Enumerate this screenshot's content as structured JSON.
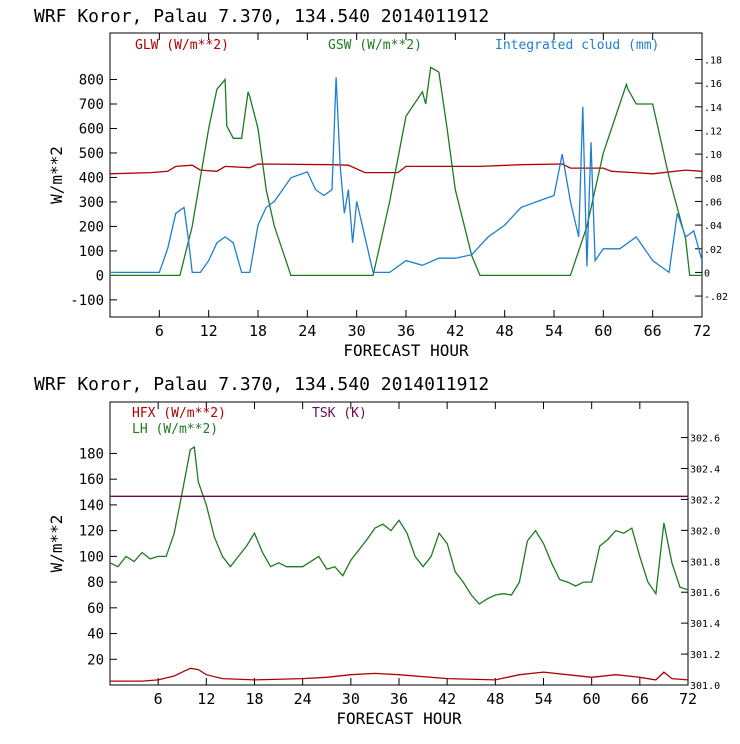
{
  "chart_data": [
    {
      "type": "line",
      "title": "WRF   Koror, Palau   7.370, 134.540  2014011912",
      "xlabel": "FORECAST HOUR",
      "ylabel": "W/m**2",
      "x_ticks": [
        6,
        12,
        18,
        24,
        30,
        36,
        42,
        48,
        54,
        60,
        66,
        72
      ],
      "y_ticks": [
        -100,
        0,
        100,
        200,
        300,
        400,
        500,
        600,
        700,
        800
      ],
      "y2_ticks": [
        -0.02,
        0,
        0.02,
        0.04,
        0.06,
        0.08,
        0.1,
        0.12,
        0.14,
        0.16,
        0.18
      ],
      "y2_tick_labels": [
        "-.02",
        "0",
        ".02",
        ".04",
        ".06",
        ".08",
        ".10",
        ".12",
        ".14",
        ".16",
        ".18"
      ],
      "xlim": [
        0,
        72
      ],
      "ylim": [
        -170,
        990
      ],
      "y2lim": [
        -0.0377,
        0.2024
      ],
      "grid": false,
      "legend": "top",
      "series": [
        {
          "name": "GLW (W/m**2)",
          "color": "#b00000",
          "axis": "left",
          "x": [
            0,
            5,
            7,
            8,
            10,
            11,
            13,
            14,
            17,
            18,
            27,
            29,
            31,
            35,
            36,
            45,
            50,
            55,
            56,
            60,
            61,
            66,
            70,
            72
          ],
          "y": [
            415,
            420,
            425,
            445,
            450,
            430,
            425,
            445,
            440,
            455,
            452,
            450,
            420,
            420,
            445,
            445,
            452,
            455,
            438,
            438,
            425,
            415,
            430,
            425
          ]
        },
        {
          "name": "GSW (W/m**2)",
          "color": "#1f7a1f",
          "axis": "left",
          "x": [
            0,
            8.5,
            10,
            12,
            13,
            14,
            14.2,
            15,
            16,
            16.8,
            17,
            18,
            19,
            20,
            21,
            22,
            32,
            34,
            36,
            38,
            38.4,
            39,
            40,
            41,
            42,
            44,
            45,
            56,
            58,
            60,
            62,
            62.8,
            63,
            64,
            66,
            68,
            70,
            70.5,
            72
          ],
          "y": [
            0,
            0,
            200,
            600,
            760,
            800,
            610,
            560,
            560,
            750,
            730,
            600,
            350,
            200,
            100,
            0,
            0,
            300,
            650,
            750,
            700,
            850,
            830,
            600,
            350,
            80,
            0,
            0,
            200,
            500,
            700,
            780,
            760,
            700,
            700,
            400,
            150,
            0,
            0
          ]
        },
        {
          "name": "Integrated cloud (mm)",
          "color": "#1e7fd0",
          "axis": "right",
          "x": [
            0,
            3,
            5,
            6,
            7,
            8,
            9,
            9.5,
            10,
            11,
            12,
            13,
            14,
            15,
            16,
            17,
            18,
            19,
            20,
            21,
            22,
            24,
            25,
            26,
            27,
            27.5,
            28,
            28.5,
            29,
            29.5,
            30,
            31,
            32,
            34,
            35,
            36,
            38,
            40,
            42,
            44,
            46,
            48,
            50,
            52,
            54,
            55,
            56,
            57,
            57.5,
            58,
            58.5,
            59,
            60,
            62,
            64,
            66,
            68,
            69,
            70,
            71,
            72
          ],
          "y": [
            0,
            0,
            0,
            0,
            0.02,
            0.05,
            0.055,
            0.03,
            0,
            0,
            0.01,
            0.025,
            0.03,
            0.025,
            0,
            0,
            0.04,
            0.055,
            0.06,
            0.07,
            0.08,
            0.085,
            0.07,
            0.065,
            0.07,
            0.165,
            0.09,
            0.05,
            0.07,
            0.025,
            0.06,
            0.03,
            0,
            0,
            0.005,
            0.01,
            0.006,
            0.012,
            0.012,
            0.015,
            0.03,
            0.04,
            0.055,
            0.06,
            0.065,
            0.1,
            0.06,
            0.03,
            0.14,
            0.005,
            0.11,
            0.01,
            0.02,
            0.02,
            0.03,
            0.01,
            0,
            0.05,
            0.03,
            0.035,
            0.01
          ]
        }
      ]
    },
    {
      "type": "line",
      "title": "WRF   Koror, Palau   7.370, 134.540  2014011912",
      "xlabel": "FORECAST HOUR",
      "ylabel": "W/m**2",
      "x_ticks": [
        6,
        12,
        18,
        24,
        30,
        36,
        42,
        48,
        54,
        60,
        66,
        72
      ],
      "y_ticks": [
        20,
        40,
        60,
        80,
        100,
        120,
        140,
        160,
        180
      ],
      "y2_ticks": [
        301.0,
        301.2,
        301.4,
        301.6,
        301.8,
        302.0,
        302.2,
        302.4,
        302.6
      ],
      "y2_tick_labels": [
        "301.0",
        "301.2",
        "301.4",
        "301.6",
        "301.8",
        "302.0",
        "302.2",
        "302.4",
        "302.6"
      ],
      "xlim": [
        0,
        72
      ],
      "ylim": [
        0,
        220
      ],
      "y2lim": [
        301.0,
        302.83
      ],
      "grid": false,
      "legend": "top-left",
      "series": [
        {
          "name": "HFX (W/m**2)",
          "color": "#b00000",
          "axis": "left",
          "x": [
            0,
            4,
            6,
            8,
            9,
            10,
            11,
            12,
            14,
            18,
            24,
            27,
            30,
            33,
            36,
            42,
            48,
            51,
            54,
            57,
            60,
            63,
            66,
            68,
            69,
            70,
            72
          ],
          "y": [
            3,
            3,
            4,
            7,
            10,
            13,
            12,
            8,
            5,
            4,
            5,
            6,
            8,
            9,
            8,
            5,
            4,
            8,
            10,
            8,
            6,
            8,
            6,
            4,
            10,
            5,
            4
          ]
        },
        {
          "name": "LH  (W/m**2)",
          "color": "#1f7a1f",
          "axis": "left",
          "x": [
            0,
            1,
            2,
            3,
            4,
            5,
            6,
            7,
            8,
            9,
            10,
            10.5,
            11,
            12,
            13,
            14,
            15,
            16,
            17,
            18,
            19,
            20,
            21,
            22,
            24,
            26,
            27,
            28,
            29,
            30,
            31,
            32,
            33,
            34,
            35,
            36,
            37,
            38,
            39,
            40,
            41,
            42,
            43,
            44,
            45,
            46,
            47,
            48,
            49,
            50,
            51,
            52,
            53,
            54,
            55,
            56,
            57,
            58,
            59,
            60,
            61,
            62,
            63,
            64,
            65,
            66,
            67,
            68,
            69,
            70,
            71,
            72
          ],
          "y": [
            95,
            92,
            100,
            96,
            103,
            98,
            100,
            100,
            118,
            150,
            183,
            185,
            158,
            140,
            115,
            100,
            92,
            100,
            108,
            118,
            103,
            92,
            95,
            92,
            92,
            100,
            90,
            92,
            85,
            97,
            105,
            113,
            122,
            125,
            120,
            128,
            118,
            100,
            92,
            100,
            118,
            110,
            88,
            80,
            70,
            63,
            67,
            70,
            71,
            70,
            80,
            112,
            120,
            110,
            95,
            82,
            80,
            77,
            80,
            80,
            108,
            113,
            120,
            118,
            122,
            100,
            80,
            71,
            126,
            95,
            76,
            74
          ]
        },
        {
          "name": "TSK (K)",
          "color": "#6a0a52",
          "axis": "right",
          "x": [
            0,
            72
          ],
          "y": [
            302.22,
            302.22
          ]
        }
      ]
    }
  ]
}
